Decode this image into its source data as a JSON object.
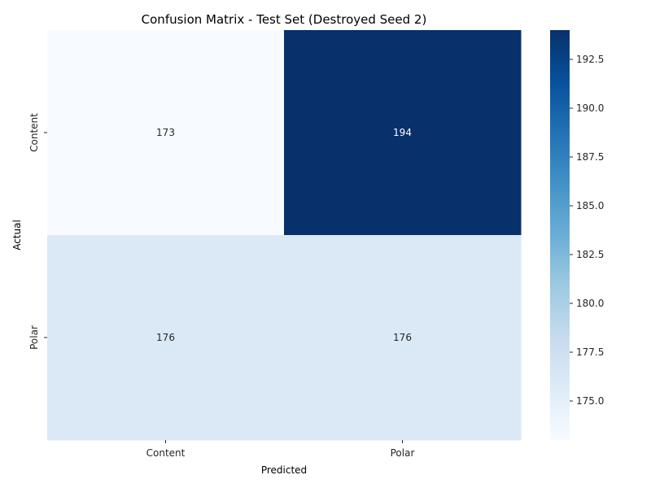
{
  "chart_data": {
    "type": "heatmap",
    "title": "Confusion Matrix - Test Set (Destroyed Seed 2)",
    "xlabel": "Predicted",
    "ylabel": "Actual",
    "x_categories": [
      "Content",
      "Polar"
    ],
    "y_categories": [
      "Content",
      "Polar"
    ],
    "values": [
      [
        173,
        194
      ],
      [
        176,
        176
      ]
    ],
    "colormap": "Blues",
    "colorbar": {
      "range": [
        173,
        194
      ],
      "ticks": [
        175.0,
        177.5,
        180.0,
        182.5,
        185.0,
        187.5,
        190.0,
        192.5
      ],
      "tick_labels": [
        "175.0",
        "177.5",
        "180.0",
        "182.5",
        "185.0",
        "187.5",
        "190.0",
        "192.5"
      ]
    },
    "grid": false
  }
}
